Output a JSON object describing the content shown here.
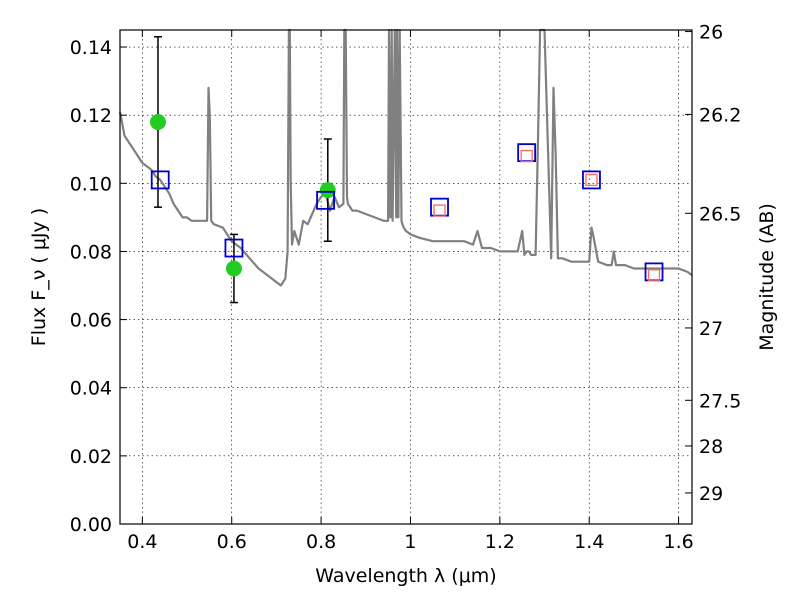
{
  "chart_data": {
    "type": "scatter",
    "xlabel": "Wavelength  λ (μm)",
    "ylabel": "Flux  F_ν  ( μJy )",
    "ylabel_right": "Magnitude (AB)",
    "xlim": [
      0.35,
      1.63
    ],
    "ylim": [
      0.0,
      0.145
    ],
    "grid": true,
    "x_ticks": [
      0.4,
      0.6,
      0.8,
      1.0,
      1.2,
      1.4,
      1.6
    ],
    "x_tick_labels": [
      "0.4",
      "0.6",
      "0.8",
      "1",
      "1.2",
      "1.4",
      "1.6"
    ],
    "y_ticks": [
      0.0,
      0.02,
      0.04,
      0.06,
      0.08,
      0.1,
      0.12,
      0.14
    ],
    "y_tick_labels": [
      "0.00",
      "0.02",
      "0.04",
      "0.06",
      "0.08",
      "0.10",
      "0.12",
      "0.14"
    ],
    "right_ticks": [
      {
        "mag": 26.0,
        "label": "26"
      },
      {
        "mag": 26.2,
        "label": "26.2"
      },
      {
        "mag": 26.5,
        "label": "26.5"
      },
      {
        "mag": 27.0,
        "label": "27"
      },
      {
        "mag": 27.5,
        "label": "27.5"
      },
      {
        "mag": 28.0,
        "label": "28"
      },
      {
        "mag": 29.0,
        "label": "29"
      }
    ],
    "series": [
      {
        "kind": "line",
        "color": "#808080",
        "x": [
          0.35,
          0.36,
          0.37,
          0.38,
          0.39,
          0.4,
          0.41,
          0.42,
          0.43,
          0.44,
          0.45,
          0.46,
          0.47,
          0.48,
          0.49,
          0.5,
          0.51,
          0.52,
          0.53,
          0.545,
          0.548,
          0.551,
          0.554,
          0.56,
          0.58,
          0.6,
          0.62,
          0.64,
          0.66,
          0.68,
          0.7,
          0.71,
          0.72,
          0.725,
          0.728,
          0.73,
          0.732,
          0.735,
          0.74,
          0.75,
          0.76,
          0.77,
          0.78,
          0.79,
          0.8,
          0.81,
          0.82,
          0.83,
          0.84,
          0.85,
          0.852,
          0.855,
          0.858,
          0.86,
          0.87,
          0.88,
          0.9,
          0.92,
          0.94,
          0.95,
          0.952,
          0.955,
          0.958,
          0.96,
          0.965,
          0.968,
          0.97,
          0.973,
          0.976,
          0.98,
          0.982,
          0.985,
          0.99,
          1.0,
          1.02,
          1.05,
          1.08,
          1.1,
          1.12,
          1.14,
          1.15,
          1.16,
          1.17,
          1.18,
          1.2,
          1.22,
          1.24,
          1.25,
          1.255,
          1.26,
          1.265,
          1.27,
          1.275,
          1.28,
          1.285,
          1.29,
          1.3,
          1.31,
          1.315,
          1.32,
          1.325,
          1.33,
          1.34,
          1.36,
          1.38,
          1.39,
          1.4,
          1.405,
          1.41,
          1.42,
          1.44,
          1.45,
          1.455,
          1.46,
          1.48,
          1.5,
          1.52,
          1.54,
          1.56,
          1.58,
          1.6,
          1.62,
          1.63
        ],
        "y": [
          0.121,
          0.114,
          0.112,
          0.11,
          0.108,
          0.106,
          0.105,
          0.104,
          0.102,
          0.101,
          0.099,
          0.097,
          0.094,
          0.092,
          0.09,
          0.09,
          0.089,
          0.089,
          0.089,
          0.089,
          0.128,
          0.12,
          0.089,
          0.088,
          0.087,
          0.083,
          0.081,
          0.078,
          0.075,
          0.073,
          0.071,
          0.07,
          0.072,
          0.08,
          0.145,
          0.145,
          0.1,
          0.082,
          0.086,
          0.082,
          0.089,
          0.088,
          0.091,
          0.094,
          0.096,
          0.097,
          0.092,
          0.096,
          0.093,
          0.094,
          0.145,
          0.145,
          0.096,
          0.094,
          0.092,
          0.092,
          0.091,
          0.09,
          0.089,
          0.089,
          0.145,
          0.09,
          0.145,
          0.089,
          0.145,
          0.09,
          0.145,
          0.09,
          0.145,
          0.089,
          0.088,
          0.087,
          0.086,
          0.085,
          0.084,
          0.083,
          0.083,
          0.083,
          0.083,
          0.082,
          0.086,
          0.081,
          0.081,
          0.081,
          0.08,
          0.08,
          0.08,
          0.086,
          0.079,
          0.08,
          0.08,
          0.079,
          0.079,
          0.079,
          0.11,
          0.145,
          0.145,
          0.1,
          0.078,
          0.128,
          0.108,
          0.078,
          0.078,
          0.077,
          0.077,
          0.077,
          0.077,
          0.087,
          0.084,
          0.077,
          0.076,
          0.076,
          0.08,
          0.076,
          0.076,
          0.075,
          0.075,
          0.075,
          0.075,
          0.075,
          0.075,
          0.074,
          0.073
        ]
      },
      {
        "kind": "points",
        "marker": "circle",
        "color": "#22cc22",
        "x": [
          0.435,
          0.605,
          0.815
        ],
        "y": [
          0.118,
          0.075,
          0.098
        ],
        "yerr": [
          0.025,
          0.01,
          0.015
        ]
      },
      {
        "kind": "points",
        "marker": "square",
        "color": "#0000cc",
        "x": [
          0.44,
          0.605,
          0.81,
          1.065,
          1.26,
          1.405,
          1.545
        ],
        "y": [
          0.101,
          0.081,
          0.095,
          0.093,
          0.109,
          0.101,
          0.074
        ]
      },
      {
        "kind": "points",
        "marker": "square",
        "color": "#ff6666",
        "x": [
          1.065,
          1.26,
          1.405,
          1.545
        ],
        "y": [
          0.092,
          0.108,
          0.101,
          0.073
        ]
      }
    ]
  }
}
